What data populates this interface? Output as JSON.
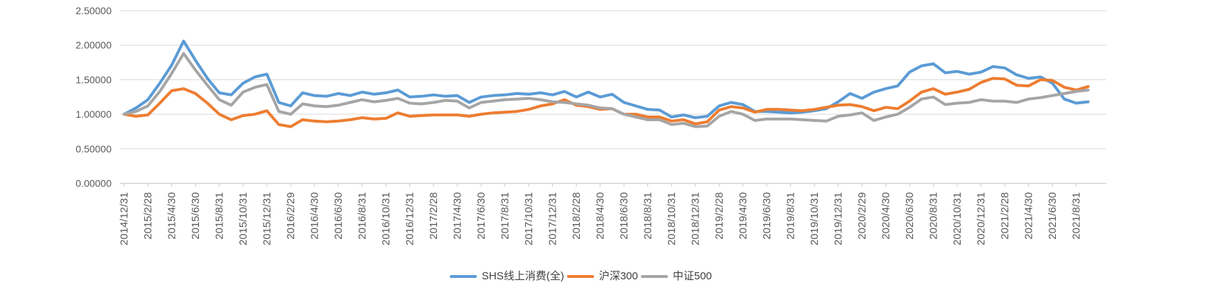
{
  "chart_data": {
    "type": "line",
    "title": "",
    "grid": true,
    "legend_position": "bottom",
    "ylim": [
      0,
      2.5
    ],
    "y_axis": {
      "tick_labels": [
        "0.00000",
        "0.50000",
        "1.00000",
        "1.50000",
        "2.00000",
        "2.50000"
      ],
      "tick_values": [
        0,
        0.5,
        1.0,
        1.5,
        2.0,
        2.5
      ]
    },
    "x_axis": {
      "shown_labels": [
        "2014/12/31",
        "2015/2/28",
        "2015/4/30",
        "2015/6/30",
        "2015/8/31",
        "2015/10/31",
        "2015/12/31",
        "2016/2/29",
        "2016/4/30",
        "2016/6/30",
        "2016/8/31",
        "2016/10/31",
        "2016/12/31",
        "2017/2/28",
        "2017/4/30",
        "2017/6/30",
        "2017/8/31",
        "2017/10/31",
        "2017/12/31",
        "2018/2/28",
        "2018/4/30",
        "2018/6/30",
        "2018/8/31",
        "2018/10/31",
        "2018/12/31",
        "2019/2/28",
        "2019/4/30",
        "2019/6/30",
        "2019/8/31",
        "2019/10/31",
        "2019/12/31",
        "2020/2/29",
        "2020/4/30",
        "2020/6/30",
        "2020/8/31",
        "2020/10/31",
        "2020/12/31",
        "2021/2/28",
        "2021/4/30",
        "2021/6/30",
        "2021/8/31"
      ],
      "label_every_n_points": 2
    },
    "x": [
      "2014/12/31",
      "2015/1/31",
      "2015/2/28",
      "2015/3/31",
      "2015/4/30",
      "2015/5/31",
      "2015/6/30",
      "2015/7/31",
      "2015/8/31",
      "2015/9/30",
      "2015/10/31",
      "2015/11/30",
      "2015/12/31",
      "2016/1/31",
      "2016/2/29",
      "2016/3/31",
      "2016/4/30",
      "2016/5/31",
      "2016/6/30",
      "2016/7/31",
      "2016/8/31",
      "2016/9/30",
      "2016/10/31",
      "2016/11/30",
      "2016/12/31",
      "2017/1/31",
      "2017/2/28",
      "2017/3/31",
      "2017/4/30",
      "2017/5/31",
      "2017/6/30",
      "2017/7/31",
      "2017/8/31",
      "2017/9/30",
      "2017/10/31",
      "2017/11/30",
      "2017/12/31",
      "2018/1/31",
      "2018/2/28",
      "2018/3/31",
      "2018/4/30",
      "2018/5/31",
      "2018/6/30",
      "2018/7/31",
      "2018/8/31",
      "2018/9/30",
      "2018/10/31",
      "2018/11/30",
      "2018/12/31",
      "2019/1/31",
      "2019/2/28",
      "2019/3/31",
      "2019/4/30",
      "2019/5/31",
      "2019/6/30",
      "2019/7/31",
      "2019/8/31",
      "2019/9/30",
      "2019/10/31",
      "2019/11/30",
      "2019/12/31",
      "2020/1/31",
      "2020/2/29",
      "2020/3/31",
      "2020/4/30",
      "2020/5/31",
      "2020/6/30",
      "2020/7/31",
      "2020/8/31",
      "2020/9/30",
      "2020/10/31",
      "2020/11/30",
      "2020/12/31",
      "2021/1/31",
      "2021/2/28",
      "2021/3/31",
      "2021/4/30",
      "2021/5/31",
      "2021/6/30",
      "2021/7/31",
      "2021/8/31",
      "2021/9/30"
    ],
    "series": [
      {
        "name": "SHS线上消费(全)",
        "color": "#5B9BD5",
        "values": [
          1.0,
          1.09,
          1.21,
          1.45,
          1.71,
          2.06,
          1.78,
          1.52,
          1.31,
          1.28,
          1.45,
          1.54,
          1.58,
          1.17,
          1.12,
          1.31,
          1.27,
          1.26,
          1.3,
          1.27,
          1.32,
          1.29,
          1.31,
          1.35,
          1.25,
          1.26,
          1.28,
          1.26,
          1.27,
          1.17,
          1.25,
          1.27,
          1.28,
          1.3,
          1.29,
          1.31,
          1.28,
          1.33,
          1.25,
          1.32,
          1.25,
          1.29,
          1.17,
          1.12,
          1.07,
          1.06,
          0.96,
          0.99,
          0.95,
          0.97,
          1.12,
          1.17,
          1.14,
          1.04,
          1.04,
          1.03,
          1.02,
          1.03,
          1.05,
          1.08,
          1.18,
          1.3,
          1.23,
          1.32,
          1.37,
          1.41,
          1.61,
          1.7,
          1.73,
          1.6,
          1.62,
          1.58,
          1.61,
          1.69,
          1.67,
          1.57,
          1.52,
          1.54,
          1.45,
          1.22,
          1.16,
          1.18
        ]
      },
      {
        "name": "沪深300",
        "color": "#ED7D31",
        "values": [
          1.0,
          0.97,
          0.99,
          1.16,
          1.34,
          1.37,
          1.3,
          1.16,
          1.0,
          0.92,
          0.98,
          1.0,
          1.05,
          0.85,
          0.82,
          0.92,
          0.9,
          0.89,
          0.9,
          0.92,
          0.95,
          0.93,
          0.94,
          1.02,
          0.97,
          0.98,
          0.99,
          0.99,
          0.99,
          0.97,
          1.0,
          1.02,
          1.03,
          1.04,
          1.07,
          1.12,
          1.15,
          1.21,
          1.13,
          1.11,
          1.07,
          1.08,
          1.0,
          1.0,
          0.96,
          0.96,
          0.9,
          0.92,
          0.86,
          0.89,
          1.06,
          1.11,
          1.09,
          1.03,
          1.07,
          1.07,
          1.06,
          1.05,
          1.07,
          1.1,
          1.13,
          1.14,
          1.11,
          1.05,
          1.1,
          1.08,
          1.19,
          1.32,
          1.37,
          1.29,
          1.32,
          1.36,
          1.46,
          1.52,
          1.51,
          1.42,
          1.41,
          1.5,
          1.49,
          1.39,
          1.35,
          1.4
        ]
      },
      {
        "name": "中证500",
        "color": "#A5A5A5",
        "values": [
          1.0,
          1.04,
          1.12,
          1.33,
          1.59,
          1.88,
          1.64,
          1.42,
          1.21,
          1.13,
          1.32,
          1.39,
          1.43,
          1.04,
          1.0,
          1.15,
          1.12,
          1.11,
          1.13,
          1.17,
          1.21,
          1.18,
          1.2,
          1.23,
          1.16,
          1.15,
          1.17,
          1.2,
          1.19,
          1.09,
          1.17,
          1.19,
          1.21,
          1.22,
          1.23,
          1.21,
          1.18,
          1.17,
          1.15,
          1.13,
          1.09,
          1.08,
          1.0,
          0.96,
          0.92,
          0.92,
          0.85,
          0.87,
          0.82,
          0.83,
          0.97,
          1.04,
          1.0,
          0.91,
          0.93,
          0.93,
          0.93,
          0.92,
          0.91,
          0.9,
          0.97,
          0.99,
          1.02,
          0.91,
          0.96,
          1.0,
          1.1,
          1.22,
          1.25,
          1.14,
          1.16,
          1.17,
          1.21,
          1.19,
          1.19,
          1.17,
          1.22,
          1.24,
          1.27,
          1.3,
          1.33,
          1.35
        ]
      }
    ]
  },
  "colors": {
    "background": "#ffffff",
    "gridline": "#D9D9D9",
    "axis_line": "#C9C9C9",
    "tick_mark": "#C9C9C9",
    "axis_label_text": "#595959",
    "legend_text": "#404040",
    "series_blue": "#5B9BD5",
    "series_orange": "#ED7D31",
    "series_gray": "#A5A5A5"
  }
}
